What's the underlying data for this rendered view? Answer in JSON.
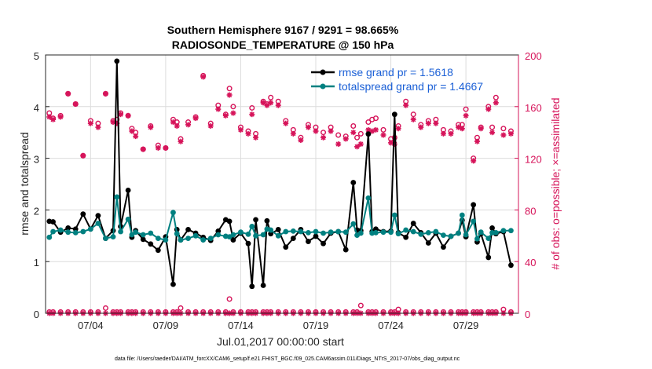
{
  "chart_data": {
    "type": "line",
    "title": "Southern Hemisphere 9167 / 9291 = 98.665%",
    "subtitle": "RADIOSONDE_TEMPERATURE @ 150 hPa",
    "xlabel": "Jul.01,2017 00:00:00 start",
    "ylabel_left": "rmse and totalspread",
    "ylabel_right": "# of obs: o=possible; ×=assimilated",
    "ylim_left": [
      0,
      5
    ],
    "ylim_right": [
      0,
      200
    ],
    "xlim": [
      1,
      32.5
    ],
    "x_ticks": [
      4,
      9,
      14,
      19,
      24,
      29
    ],
    "x_tick_labels": [
      "07/04",
      "07/09",
      "07/14",
      "07/19",
      "07/24",
      "07/29"
    ],
    "y_left_ticks": [
      "0",
      "1",
      "2",
      "3",
      "4",
      "5"
    ],
    "y_right_ticks": [
      "0",
      "40",
      "80",
      "120",
      "160",
      "200"
    ],
    "legend": {
      "location": "top-right",
      "rmse_label": "rmse grand pr = 1.5618",
      "spread_label": "totalspread grand pr = 1.4667"
    },
    "footer": "data file: /Users/raeder/DAI/ATM_forcXX/CAM6_setup/f.e21.FHIST_BGC.f09_025.CAM6assim.011/Diags_NTrS_2017-07/obs_diag_output.nc",
    "colors": {
      "rmse": "#000000",
      "spread": "#008080",
      "obs": "#d6145a",
      "axes_left": "#262626",
      "axes_right": "#d6145a"
    },
    "x": [
      1.25,
      1.5,
      2.0,
      2.5,
      3.0,
      3.5,
      4.0,
      4.5,
      5.0,
      5.5,
      5.75,
      6.0,
      6.5,
      6.75,
      7.0,
      7.5,
      8.0,
      8.5,
      9.0,
      9.5,
      9.75,
      10.0,
      10.5,
      11.0,
      11.5,
      12.0,
      12.5,
      13.0,
      13.25,
      13.5,
      14.0,
      14.5,
      14.75,
      15.0,
      15.5,
      15.75,
      16.0,
      16.5,
      17.0,
      17.5,
      18.0,
      18.5,
      19.0,
      19.5,
      20.0,
      20.5,
      21.0,
      21.5,
      21.75,
      22.0,
      22.5,
      22.75,
      23.0,
      23.5,
      24.0,
      24.25,
      24.5,
      25.0,
      25.5,
      26.0,
      26.5,
      27.0,
      27.5,
      28.0,
      28.5,
      28.75,
      29.0,
      29.5,
      29.75,
      30.0,
      30.5,
      30.75,
      31.0,
      31.5,
      32.0
    ],
    "series": [
      {
        "name": "rmse",
        "values": [
          1.78,
          1.77,
          1.57,
          1.65,
          1.63,
          1.92,
          1.63,
          1.89,
          1.45,
          1.6,
          4.88,
          1.68,
          2.38,
          1.47,
          1.6,
          1.43,
          1.34,
          1.22,
          1.48,
          0.56,
          1.62,
          1.42,
          1.62,
          1.55,
          1.47,
          1.41,
          1.59,
          1.81,
          1.78,
          1.42,
          1.55,
          1.35,
          0.52,
          1.81,
          0.54,
          1.79,
          1.54,
          1.62,
          1.28,
          1.45,
          1.62,
          1.39,
          1.49,
          1.35,
          1.55,
          1.58,
          1.23,
          2.53,
          1.61,
          1.6,
          3.47,
          1.58,
          1.63,
          1.58,
          1.59,
          3.85,
          1.56,
          1.47,
          1.74,
          1.56,
          1.36,
          1.55,
          1.28,
          1.49,
          1.55,
          1.8,
          1.48,
          2.1,
          1.38,
          1.54,
          1.08,
          1.65,
          1.54,
          1.58,
          0.93
        ]
      },
      {
        "name": "totalspread",
        "values": [
          1.47,
          1.58,
          1.61,
          1.57,
          1.56,
          1.58,
          1.63,
          1.74,
          1.45,
          1.48,
          2.25,
          1.58,
          1.82,
          1.52,
          1.57,
          1.52,
          1.55,
          1.45,
          1.42,
          1.95,
          1.54,
          1.42,
          1.45,
          1.5,
          1.42,
          1.45,
          1.52,
          1.49,
          1.48,
          1.52,
          1.57,
          1.53,
          1.68,
          1.5,
          1.52,
          1.63,
          1.61,
          1.5,
          1.58,
          1.59,
          1.58,
          1.56,
          1.58,
          1.55,
          1.57,
          1.58,
          1.57,
          1.73,
          1.51,
          1.55,
          2.23,
          1.55,
          1.56,
          1.57,
          1.57,
          1.9,
          1.54,
          1.61,
          1.58,
          1.53,
          1.56,
          1.58,
          1.51,
          1.49,
          1.55,
          1.9,
          1.52,
          1.78,
          1.44,
          1.57,
          1.45,
          1.56,
          1.56,
          1.6,
          1.6
        ]
      },
      {
        "name": "possible",
        "values": [
          155,
          151,
          153,
          170,
          162,
          122,
          149,
          147,
          170,
          149,
          150,
          155,
          153,
          143,
          140,
          127,
          145,
          130,
          128,
          150,
          148,
          135,
          148,
          152,
          184,
          147,
          161,
          154,
          174,
          160,
          144,
          141,
          159,
          139,
          164,
          162,
          167,
          164,
          149,
          142,
          136,
          146,
          144,
          140,
          144,
          138,
          137,
          145,
          136,
          139,
          148,
          150,
          151,
          142,
          135,
          136,
          145,
          164,
          154,
          146,
          149,
          150,
          142,
          141,
          146,
          146,
          158,
          120,
          136,
          144,
          160,
          144,
          167,
          143,
          141
        ]
      },
      {
        "name": "assimilated",
        "values": [
          152,
          150,
          152,
          170,
          162,
          122,
          147,
          144,
          170,
          148,
          147,
          154,
          153,
          141,
          137,
          127,
          144,
          128,
          128,
          148,
          145,
          133,
          146,
          151,
          183,
          145,
          158,
          153,
          169,
          155,
          142,
          139,
          154,
          136,
          163,
          161,
          163,
          161,
          147,
          139,
          134,
          144,
          141,
          136,
          141,
          131,
          135,
          140,
          129,
          131,
          142,
          141,
          142,
          138,
          132,
          131,
          143,
          161,
          150,
          144,
          147,
          147,
          139,
          139,
          144,
          143,
          153,
          118,
          133,
          143,
          158,
          140,
          163,
          138,
          139
        ]
      },
      {
        "name": "possible_near_zero",
        "values": [
          1,
          1,
          1,
          1,
          1,
          1,
          1,
          1,
          4,
          1,
          1,
          1,
          1,
          1,
          1,
          1,
          1,
          1,
          1,
          1,
          1,
          4,
          1,
          1,
          1,
          1,
          1,
          1,
          11,
          1,
          1,
          1,
          1,
          1,
          1,
          1,
          1,
          1,
          1,
          1,
          1,
          1,
          1,
          1,
          1,
          1,
          1,
          1,
          1,
          6,
          1,
          1,
          1,
          1,
          1,
          1,
          3,
          1,
          1,
          1,
          1,
          1,
          1,
          1,
          1,
          1,
          1,
          1,
          1,
          1,
          1,
          1,
          1,
          3,
          1
        ]
      }
    ]
  }
}
